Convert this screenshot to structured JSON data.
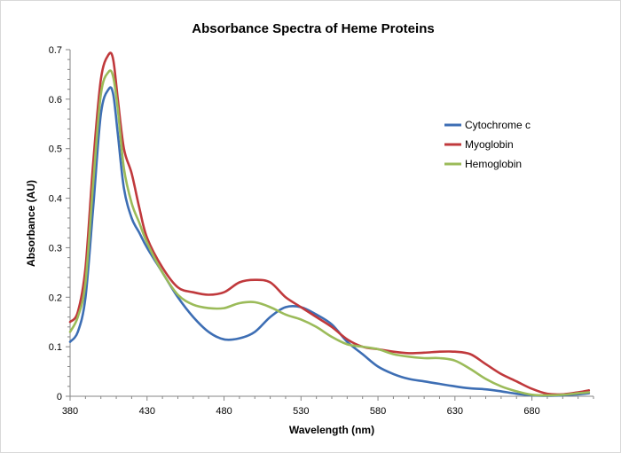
{
  "chart_data": {
    "type": "line",
    "title": "Absorbance Spectra of Heme Proteins",
    "xlabel": "Wavelength (nm)",
    "ylabel": "Absorbance (AU)",
    "xlim": [
      380,
      720
    ],
    "ylim": [
      0,
      0.7
    ],
    "x_ticks": [
      380,
      430,
      480,
      530,
      580,
      630,
      680
    ],
    "y_ticks": [
      0,
      0.1,
      0.2,
      0.3,
      0.4,
      0.5,
      0.6,
      0.7
    ],
    "grid": false,
    "legend_position": "right",
    "series": [
      {
        "name": "Cytochrome c",
        "color": "#3d6eb4",
        "x": [
          380,
          385,
          390,
          395,
          400,
          405,
          408,
          411,
          415,
          420,
          425,
          430,
          440,
          450,
          460,
          470,
          480,
          490,
          500,
          510,
          520,
          530,
          540,
          550,
          560,
          570,
          580,
          590,
          600,
          610,
          620,
          630,
          640,
          650,
          660,
          670,
          680,
          690,
          700,
          710,
          717
        ],
        "y": [
          0.11,
          0.13,
          0.2,
          0.38,
          0.57,
          0.62,
          0.61,
          0.53,
          0.42,
          0.36,
          0.33,
          0.3,
          0.25,
          0.2,
          0.16,
          0.13,
          0.115,
          0.117,
          0.13,
          0.16,
          0.18,
          0.18,
          0.165,
          0.145,
          0.11,
          0.085,
          0.06,
          0.045,
          0.035,
          0.03,
          0.025,
          0.02,
          0.016,
          0.014,
          0.01,
          0.005,
          0.002,
          0.001,
          0.002,
          0.004,
          0.006
        ]
      },
      {
        "name": "Myoglobin",
        "color": "#c0393c",
        "x": [
          380,
          385,
          390,
          395,
          400,
          405,
          408,
          411,
          415,
          420,
          425,
          430,
          440,
          450,
          460,
          470,
          480,
          490,
          500,
          510,
          520,
          530,
          540,
          550,
          560,
          570,
          580,
          590,
          600,
          610,
          620,
          630,
          640,
          650,
          660,
          670,
          680,
          690,
          700,
          710,
          717
        ],
        "y": [
          0.15,
          0.17,
          0.26,
          0.47,
          0.64,
          0.69,
          0.68,
          0.6,
          0.5,
          0.45,
          0.38,
          0.32,
          0.26,
          0.22,
          0.21,
          0.205,
          0.21,
          0.23,
          0.235,
          0.23,
          0.2,
          0.18,
          0.16,
          0.14,
          0.115,
          0.1,
          0.095,
          0.09,
          0.087,
          0.088,
          0.09,
          0.09,
          0.085,
          0.065,
          0.045,
          0.03,
          0.015,
          0.005,
          0.004,
          0.008,
          0.012
        ]
      },
      {
        "name": "Hemoglobin",
        "color": "#9bbb59",
        "x": [
          380,
          385,
          390,
          395,
          400,
          405,
          408,
          411,
          415,
          420,
          425,
          430,
          440,
          450,
          460,
          470,
          480,
          490,
          500,
          510,
          520,
          530,
          540,
          550,
          560,
          570,
          580,
          590,
          600,
          610,
          620,
          630,
          640,
          650,
          660,
          670,
          680,
          690,
          700,
          710,
          717
        ],
        "y": [
          0.13,
          0.16,
          0.23,
          0.43,
          0.61,
          0.655,
          0.645,
          0.58,
          0.46,
          0.39,
          0.35,
          0.31,
          0.25,
          0.205,
          0.185,
          0.178,
          0.178,
          0.188,
          0.19,
          0.18,
          0.165,
          0.155,
          0.14,
          0.12,
          0.105,
          0.1,
          0.095,
          0.085,
          0.08,
          0.077,
          0.077,
          0.072,
          0.055,
          0.035,
          0.02,
          0.01,
          0.003,
          0.002,
          0.003,
          0.006,
          0.008
        ]
      }
    ]
  }
}
